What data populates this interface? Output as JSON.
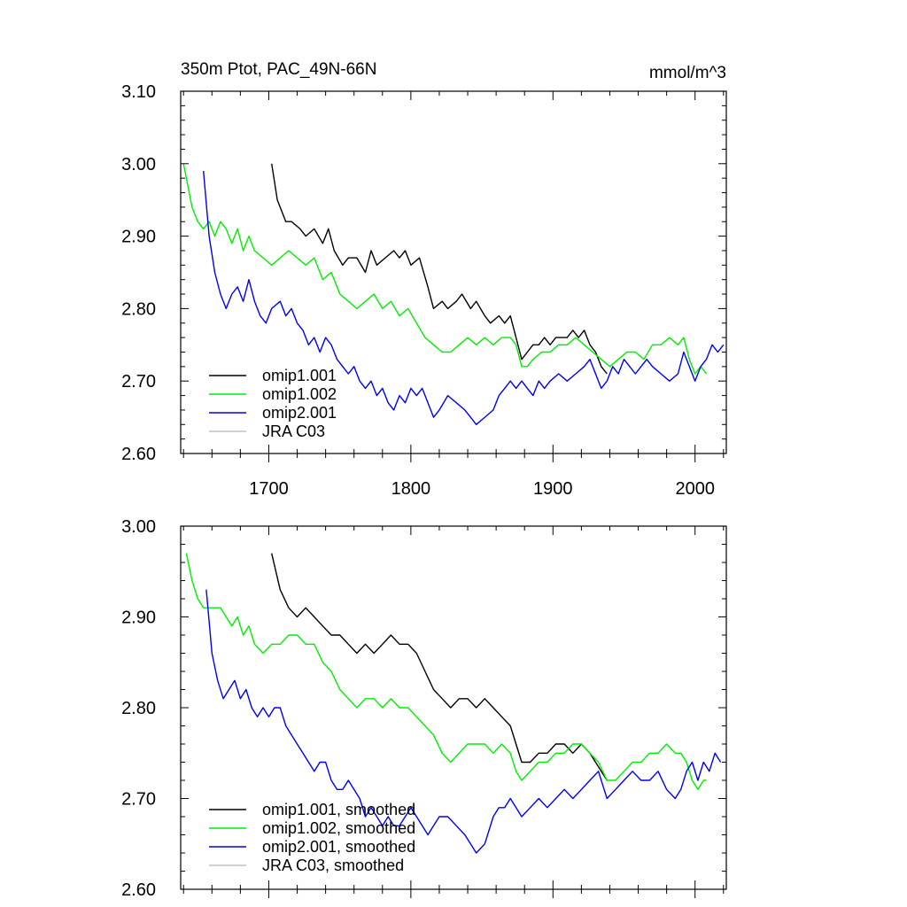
{
  "figure": {
    "title": "350m Ptot, PAC_49N-66N",
    "units": "mmol/m^3"
  },
  "chart_data": [
    {
      "type": "line",
      "title": "350m Ptot, PAC_49N-66N",
      "units": "mmol/m^3",
      "xlabel": "",
      "ylabel": "",
      "xlim": [
        1638,
        2022
      ],
      "ylim": [
        2.6,
        3.1
      ],
      "xticks": [
        1700,
        1800,
        1900,
        2000
      ],
      "xtick_labels": [
        "1700",
        "1800",
        "1900",
        "2000"
      ],
      "yticks": [
        2.6,
        2.7,
        2.8,
        2.9,
        3.0,
        3.1
      ],
      "ytick_labels": [
        "2.60",
        "2.70",
        "2.80",
        "2.90",
        "3.00",
        "3.10"
      ],
      "grid": false,
      "legend_position": "bottom-left",
      "series": [
        {
          "name": "omip1.001",
          "color": "#000000",
          "x": [
            1702,
            1706,
            1712,
            1716,
            1722,
            1726,
            1732,
            1738,
            1742,
            1746,
            1752,
            1756,
            1762,
            1768,
            1772,
            1776,
            1782,
            1788,
            1792,
            1796,
            1800,
            1806,
            1812,
            1816,
            1822,
            1826,
            1832,
            1836,
            1842,
            1846,
            1852,
            1856,
            1862,
            1866,
            1870,
            1874,
            1878,
            1882,
            1886,
            1890,
            1894,
            1898,
            1902,
            1906,
            1910,
            1914,
            1918,
            1922,
            1926,
            1930,
            1934,
            1938
          ],
          "values": [
            3.0,
            2.95,
            2.92,
            2.92,
            2.91,
            2.9,
            2.91,
            2.89,
            2.91,
            2.88,
            2.86,
            2.87,
            2.87,
            2.85,
            2.88,
            2.86,
            2.87,
            2.88,
            2.87,
            2.88,
            2.86,
            2.87,
            2.83,
            2.8,
            2.81,
            2.8,
            2.81,
            2.82,
            2.8,
            2.81,
            2.79,
            2.78,
            2.79,
            2.78,
            2.79,
            2.76,
            2.73,
            2.74,
            2.75,
            2.75,
            2.76,
            2.75,
            2.76,
            2.76,
            2.76,
            2.77,
            2.76,
            2.77,
            2.75,
            2.74,
            2.72,
            2.71
          ]
        },
        {
          "name": "omip1.002",
          "color": "#00ee00",
          "x": [
            1640,
            1643,
            1646,
            1650,
            1654,
            1658,
            1662,
            1666,
            1670,
            1674,
            1678,
            1682,
            1686,
            1690,
            1696,
            1702,
            1708,
            1714,
            1720,
            1726,
            1732,
            1738,
            1744,
            1750,
            1756,
            1762,
            1768,
            1774,
            1780,
            1786,
            1792,
            1798,
            1804,
            1810,
            1816,
            1822,
            1828,
            1834,
            1840,
            1846,
            1852,
            1858,
            1864,
            1870,
            1874,
            1878,
            1882,
            1886,
            1892,
            1898,
            1904,
            1910,
            1916,
            1922,
            1928,
            1934,
            1940,
            1946,
            1952,
            1958,
            1964,
            1970,
            1976,
            1982,
            1988,
            1992,
            1996,
            2000,
            2004,
            2008
          ],
          "values": [
            3.0,
            2.97,
            2.94,
            2.92,
            2.91,
            2.92,
            2.9,
            2.92,
            2.91,
            2.89,
            2.91,
            2.88,
            2.9,
            2.88,
            2.87,
            2.86,
            2.87,
            2.88,
            2.87,
            2.86,
            2.87,
            2.84,
            2.85,
            2.82,
            2.81,
            2.8,
            2.81,
            2.82,
            2.8,
            2.81,
            2.79,
            2.8,
            2.78,
            2.76,
            2.75,
            2.74,
            2.74,
            2.75,
            2.76,
            2.75,
            2.76,
            2.75,
            2.76,
            2.76,
            2.75,
            2.72,
            2.72,
            2.73,
            2.74,
            2.74,
            2.75,
            2.75,
            2.76,
            2.75,
            2.74,
            2.73,
            2.72,
            2.73,
            2.74,
            2.74,
            2.73,
            2.75,
            2.75,
            2.76,
            2.75,
            2.76,
            2.73,
            2.71,
            2.72,
            2.71
          ]
        },
        {
          "name": "omip2.001",
          "color": "#0000ee",
          "x": [
            1654,
            1658,
            1662,
            1666,
            1670,
            1674,
            1678,
            1682,
            1686,
            1690,
            1694,
            1698,
            1702,
            1708,
            1712,
            1716,
            1720,
            1724,
            1728,
            1732,
            1736,
            1740,
            1744,
            1748,
            1752,
            1756,
            1760,
            1764,
            1768,
            1772,
            1776,
            1780,
            1784,
            1788,
            1792,
            1796,
            1800,
            1804,
            1808,
            1812,
            1816,
            1820,
            1826,
            1832,
            1838,
            1842,
            1846,
            1852,
            1858,
            1862,
            1866,
            1870,
            1874,
            1878,
            1882,
            1886,
            1890,
            1894,
            1898,
            1904,
            1910,
            1916,
            1922,
            1926,
            1930,
            1934,
            1938,
            1942,
            1946,
            1950,
            1954,
            1958,
            1962,
            1966,
            1970,
            1976,
            1982,
            1988,
            1992,
            1996,
            2000,
            2004,
            2008,
            2012,
            2016,
            2020
          ],
          "values": [
            2.99,
            2.9,
            2.85,
            2.82,
            2.8,
            2.82,
            2.83,
            2.81,
            2.84,
            2.81,
            2.79,
            2.78,
            2.8,
            2.81,
            2.79,
            2.8,
            2.78,
            2.77,
            2.75,
            2.76,
            2.74,
            2.76,
            2.75,
            2.73,
            2.72,
            2.71,
            2.72,
            2.7,
            2.69,
            2.7,
            2.68,
            2.69,
            2.67,
            2.66,
            2.68,
            2.67,
            2.69,
            2.68,
            2.69,
            2.67,
            2.65,
            2.66,
            2.68,
            2.67,
            2.66,
            2.65,
            2.64,
            2.65,
            2.66,
            2.68,
            2.69,
            2.7,
            2.69,
            2.7,
            2.69,
            2.68,
            2.7,
            2.69,
            2.7,
            2.71,
            2.7,
            2.71,
            2.72,
            2.73,
            2.71,
            2.69,
            2.7,
            2.72,
            2.71,
            2.73,
            2.72,
            2.71,
            2.72,
            2.73,
            2.72,
            2.71,
            2.7,
            2.71,
            2.74,
            2.72,
            2.7,
            2.72,
            2.73,
            2.75,
            2.74,
            2.75
          ]
        },
        {
          "name": "JRA C03",
          "color": "#c0c0c0",
          "x": [],
          "values": []
        }
      ]
    },
    {
      "type": "line",
      "title": "",
      "units": "",
      "xlabel": "",
      "ylabel": "",
      "xlim": [
        1638,
        2022
      ],
      "ylim": [
        2.6,
        3.0
      ],
      "xticks": [
        1700,
        1800,
        1900,
        2000
      ],
      "xtick_labels": [],
      "yticks": [
        2.6,
        2.7,
        2.8,
        2.9,
        3.0
      ],
      "ytick_labels": [
        "2.60",
        "2.70",
        "2.80",
        "2.90",
        "3.00"
      ],
      "grid": false,
      "legend_position": "bottom-left",
      "series": [
        {
          "name": "omip1.001, smoothed",
          "color": "#000000",
          "x": [
            1702,
            1708,
            1714,
            1720,
            1726,
            1732,
            1738,
            1744,
            1750,
            1756,
            1762,
            1768,
            1774,
            1780,
            1786,
            1792,
            1798,
            1804,
            1810,
            1816,
            1822,
            1828,
            1834,
            1840,
            1846,
            1852,
            1858,
            1864,
            1870,
            1874,
            1878,
            1884,
            1890,
            1896,
            1902,
            1908,
            1914,
            1920,
            1926,
            1930,
            1934,
            1938
          ],
          "values": [
            2.97,
            2.93,
            2.91,
            2.9,
            2.91,
            2.9,
            2.89,
            2.88,
            2.88,
            2.87,
            2.86,
            2.87,
            2.86,
            2.87,
            2.88,
            2.87,
            2.87,
            2.86,
            2.84,
            2.82,
            2.81,
            2.8,
            2.81,
            2.81,
            2.8,
            2.81,
            2.8,
            2.79,
            2.78,
            2.76,
            2.74,
            2.74,
            2.75,
            2.75,
            2.76,
            2.76,
            2.75,
            2.76,
            2.75,
            2.74,
            2.73,
            2.72
          ]
        },
        {
          "name": "omip1.002, smoothed",
          "color": "#00ee00",
          "x": [
            1642,
            1646,
            1650,
            1654,
            1658,
            1662,
            1666,
            1670,
            1674,
            1678,
            1682,
            1686,
            1690,
            1696,
            1702,
            1708,
            1714,
            1720,
            1726,
            1732,
            1738,
            1744,
            1750,
            1756,
            1762,
            1768,
            1774,
            1780,
            1786,
            1792,
            1798,
            1804,
            1810,
            1816,
            1822,
            1828,
            1834,
            1840,
            1846,
            1852,
            1858,
            1864,
            1870,
            1874,
            1878,
            1884,
            1890,
            1896,
            1902,
            1908,
            1914,
            1920,
            1926,
            1932,
            1938,
            1944,
            1950,
            1956,
            1962,
            1968,
            1974,
            1980,
            1986,
            1990,
            1994,
            1998,
            2002,
            2006,
            2008
          ],
          "values": [
            2.97,
            2.94,
            2.92,
            2.91,
            2.91,
            2.91,
            2.91,
            2.9,
            2.89,
            2.9,
            2.88,
            2.89,
            2.87,
            2.86,
            2.87,
            2.87,
            2.88,
            2.88,
            2.87,
            2.87,
            2.85,
            2.84,
            2.82,
            2.81,
            2.8,
            2.81,
            2.81,
            2.8,
            2.81,
            2.8,
            2.8,
            2.79,
            2.78,
            2.77,
            2.75,
            2.74,
            2.75,
            2.76,
            2.76,
            2.76,
            2.75,
            2.76,
            2.75,
            2.73,
            2.72,
            2.73,
            2.74,
            2.74,
            2.75,
            2.75,
            2.76,
            2.76,
            2.75,
            2.74,
            2.72,
            2.72,
            2.73,
            2.74,
            2.74,
            2.75,
            2.75,
            2.76,
            2.75,
            2.75,
            2.74,
            2.72,
            2.71,
            2.72,
            2.72
          ]
        },
        {
          "name": "omip2.001, smoothed",
          "color": "#0000ee",
          "x": [
            1656,
            1660,
            1664,
            1668,
            1672,
            1676,
            1680,
            1684,
            1688,
            1692,
            1696,
            1700,
            1704,
            1708,
            1712,
            1716,
            1720,
            1724,
            1728,
            1732,
            1736,
            1740,
            1744,
            1748,
            1752,
            1756,
            1760,
            1764,
            1768,
            1772,
            1776,
            1780,
            1784,
            1788,
            1792,
            1796,
            1800,
            1804,
            1808,
            1812,
            1816,
            1820,
            1826,
            1832,
            1838,
            1842,
            1846,
            1852,
            1858,
            1862,
            1866,
            1870,
            1874,
            1878,
            1884,
            1890,
            1896,
            1902,
            1908,
            1914,
            1920,
            1926,
            1932,
            1938,
            1944,
            1950,
            1956,
            1962,
            1968,
            1974,
            1980,
            1986,
            1990,
            1994,
            1998,
            2002,
            2006,
            2010,
            2014,
            2018
          ],
          "values": [
            2.93,
            2.86,
            2.83,
            2.81,
            2.82,
            2.83,
            2.81,
            2.82,
            2.8,
            2.79,
            2.8,
            2.79,
            2.8,
            2.8,
            2.78,
            2.77,
            2.76,
            2.75,
            2.74,
            2.73,
            2.74,
            2.74,
            2.72,
            2.71,
            2.71,
            2.72,
            2.71,
            2.7,
            2.68,
            2.69,
            2.68,
            2.67,
            2.68,
            2.67,
            2.67,
            2.68,
            2.69,
            2.68,
            2.67,
            2.66,
            2.67,
            2.68,
            2.68,
            2.67,
            2.66,
            2.65,
            2.64,
            2.65,
            2.68,
            2.69,
            2.69,
            2.7,
            2.69,
            2.68,
            2.69,
            2.7,
            2.69,
            2.7,
            2.71,
            2.7,
            2.71,
            2.72,
            2.73,
            2.7,
            2.71,
            2.72,
            2.73,
            2.72,
            2.72,
            2.73,
            2.71,
            2.7,
            2.71,
            2.73,
            2.74,
            2.72,
            2.74,
            2.73,
            2.75,
            2.74
          ]
        },
        {
          "name": "JRA C03, smoothed",
          "color": "#c0c0c0",
          "x": [],
          "values": []
        }
      ]
    }
  ]
}
